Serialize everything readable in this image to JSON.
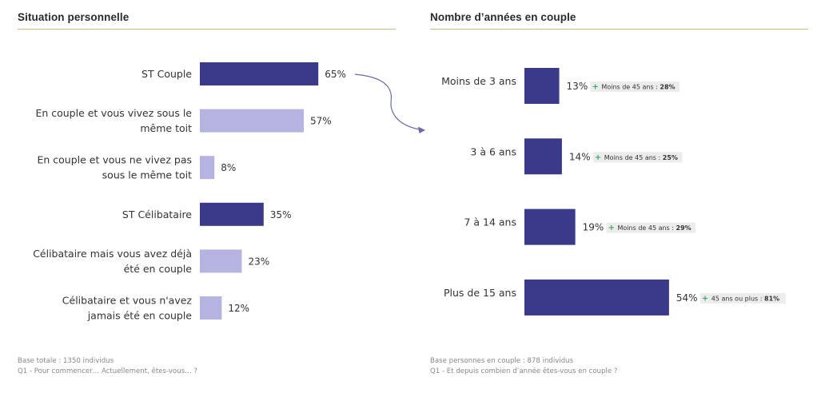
{
  "chart_data": [
    {
      "type": "bar",
      "title": "Situation personnelle",
      "categories": [
        [
          "ST Couple"
        ],
        [
          "En couple et vous vivez sous le",
          "même toit"
        ],
        [
          "En couple et vous ne vivez pas",
          "sous le même toit"
        ],
        [
          "ST Célibataire"
        ],
        [
          "Célibataire mais vous avez déjà",
          "été en couple"
        ],
        [
          "Célibataire et vous n'avez",
          "jamais été en couple"
        ]
      ],
      "values": [
        65,
        57,
        8,
        35,
        23,
        12
      ],
      "value_labels": [
        "65%",
        "57%",
        "8%",
        "35%",
        "23%",
        "12%"
      ],
      "bar_colors": [
        "#3b3a8a",
        "#b5b3e0",
        "#b5b3e0",
        "#3b3a8a",
        "#b5b3e0",
        "#b5b3e0"
      ],
      "orientation": "horizontal",
      "xlim": [
        0,
        100
      ],
      "footnote": [
        "Base totale : 1350 individus",
        "Q1 - Pour commencer… Actuellement, êtes-vous… ?"
      ]
    },
    {
      "type": "bar",
      "title": "Nombre d’années en couple",
      "categories": [
        [
          "Moins de 3 ans"
        ],
        [
          "3 à 6 ans"
        ],
        [
          "7 à 14 ans"
        ],
        [
          "Plus de 15 ans"
        ]
      ],
      "values": [
        13,
        14,
        19,
        54
      ],
      "value_labels": [
        "13%",
        "14%",
        "19%",
        "54%"
      ],
      "bar_colors": [
        "#3b3a8a",
        "#3b3a8a",
        "#3b3a8a",
        "#3b3a8a"
      ],
      "orientation": "horizontal",
      "xlim": [
        0,
        100
      ],
      "annotations": [
        {
          "plus": "+",
          "text": "Moins de 45 ans : ",
          "value": "28%"
        },
        {
          "plus": "+",
          "text": "Moins de 45 ans : ",
          "value": "25%"
        },
        {
          "plus": "+",
          "text": "Moins de 45 ans : ",
          "value": "29%"
        },
        {
          "plus": "+",
          "text": "45 ans ou plus : ",
          "value": "81%"
        }
      ],
      "footnote": [
        "Base personnes en couple : 878 individus",
        "Q1 - Et depuis combien d’année êtes-vous en couple ?"
      ]
    }
  ],
  "colors": {
    "dark_bar": "#3b3a8a",
    "light_bar": "#b5b3e0",
    "title_rule": "#c9b88a",
    "arrow": "#6b6aa6",
    "plus_sign": "#3aa86b",
    "annotation_bg": "#ececec"
  }
}
